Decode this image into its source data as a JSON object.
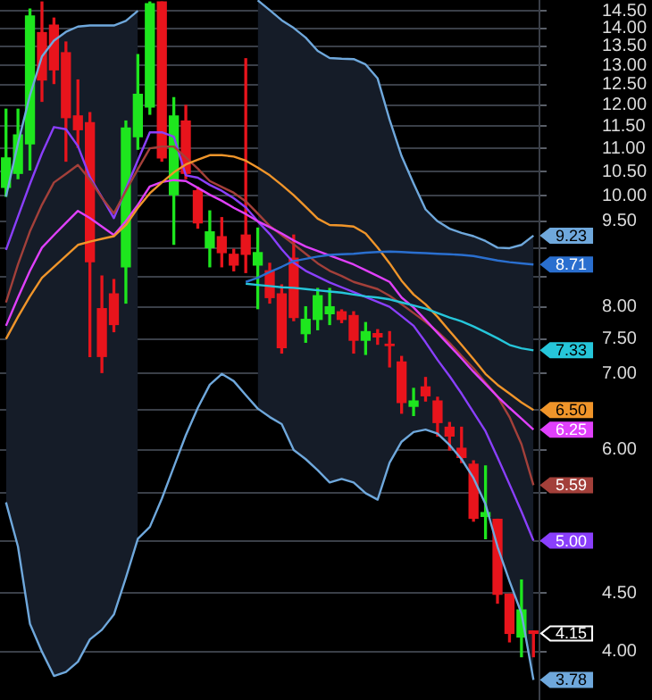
{
  "chart_data": {
    "type": "candlestick",
    "categories": [
      null,
      null,
      null,
      null,
      null,
      null,
      null,
      null,
      null,
      null,
      null,
      null,
      null,
      null,
      null,
      null,
      null,
      null,
      null,
      null,
      null,
      null,
      null,
      null,
      null,
      null,
      null,
      null,
      null,
      null,
      null,
      null,
      null,
      null,
      null,
      null,
      null,
      null,
      null,
      null,
      null,
      null,
      null,
      null,
      null
    ],
    "ohlc": [
      [
        10.17,
        11.9,
        9.99,
        10.79
      ],
      [
        10.46,
        11.9,
        10.35,
        11.3
      ],
      [
        11.1,
        14.55,
        10.53,
        14.35
      ],
      [
        13.88,
        14.76,
        12.09,
        12.62
      ],
      [
        14.09,
        14.29,
        12.53,
        12.88
      ],
      [
        13.33,
        13.62,
        10.72,
        11.7
      ],
      [
        11.74,
        12.62,
        11.02,
        11.42
      ],
      [
        11.58,
        11.82,
        7.24,
        8.76
      ],
      [
        7.97,
        8.51,
        7.01,
        7.24
      ],
      [
        8.21,
        8.45,
        7.61,
        7.72
      ],
      [
        8.67,
        11.62,
        8.06,
        11.46
      ],
      [
        11.26,
        13.28,
        10.98,
        12.26
      ],
      [
        11.95,
        14.76,
        11.78,
        14.71
      ],
      [
        14.76,
        14.76,
        10.72,
        10.79
      ],
      [
        10.02,
        12.18,
        9.07,
        11.74
      ],
      [
        11.62,
        11.99,
        10.35,
        10.46
      ],
      [
        10.1,
        10.17,
        9.37,
        9.47
      ],
      [
        9.01,
        9.7,
        8.67,
        9.3
      ],
      [
        9.21,
        9.57,
        8.67,
        8.92
      ],
      [
        8.89,
        8.98,
        8.6,
        8.7
      ],
      [
        9.24,
        13.17,
        8.57,
        8.89
      ],
      [
        8.7,
        9.37,
        7.97,
        8.92
      ],
      [
        8.6,
        8.73,
        8.06,
        8.15
      ],
      [
        8.21,
        8.36,
        7.29,
        7.37
      ],
      [
        8.82,
        9.24,
        7.78,
        7.83
      ],
      [
        7.58,
        8.0,
        7.45,
        7.8
      ],
      [
        7.8,
        8.3,
        7.64,
        8.18
      ],
      [
        7.89,
        8.3,
        7.72,
        8.0
      ],
      [
        7.92,
        7.95,
        7.75,
        7.8
      ],
      [
        7.86,
        7.92,
        7.29,
        7.48
      ],
      [
        7.48,
        7.75,
        7.27,
        7.61
      ],
      [
        7.58,
        7.64,
        7.42,
        7.53
      ],
      [
        7.42,
        7.61,
        7.09,
        7.4
      ],
      [
        7.16,
        7.24,
        6.46,
        6.6
      ],
      [
        6.55,
        6.79,
        6.43,
        6.62
      ],
      [
        6.81,
        6.94,
        6.62,
        6.69
      ],
      [
        6.62,
        6.67,
        6.17,
        6.34
      ],
      [
        6.28,
        6.34,
        6.0,
        6.17
      ],
      [
        6.02,
        6.28,
        5.85,
        5.91
      ],
      [
        5.83,
        5.87,
        5.2,
        5.23
      ],
      [
        5.25,
        5.81,
        5.02,
        5.29
      ],
      [
        5.22,
        5.22,
        4.41,
        4.49
      ],
      [
        4.49,
        4.49,
        4.08,
        4.15
      ],
      [
        4.12,
        4.62,
        3.96,
        4.35
      ],
      [
        4.17,
        4.17,
        3.96,
        4.15
      ]
    ],
    "value_labels": [
      null,
      null,
      null,
      null,
      null,
      null,
      null,
      null,
      null,
      null,
      null,
      null,
      null,
      null,
      null,
      null,
      null,
      null,
      null,
      null,
      null,
      null,
      null,
      null,
      null,
      null,
      null,
      null,
      null,
      null,
      null,
      null,
      null,
      null,
      null,
      null,
      null,
      null,
      null,
      null,
      null,
      null,
      null,
      null,
      "4.15"
    ],
    "colors": [
      "#1ee61e",
      "#1ee61e",
      "#1ee61e",
      "#e8141c",
      "#e8141c",
      "#e8141c",
      "#e8141c",
      "#e8141c",
      "#e8141c",
      "#e8141c",
      "#1ee61e",
      "#1ee61e",
      "#1ee61e",
      "#e8141c",
      "#1ee61e",
      "#e8141c",
      "#e8141c",
      "#1ee61e",
      "#e8141c",
      "#e8141c",
      "#e8141c",
      "#1ee61e",
      "#e8141c",
      "#e8141c",
      "#e8141c",
      "#1ee61e",
      "#1ee61e",
      "#1ee61e",
      "#e8141c",
      "#e8141c",
      "#1ee61e",
      "#e8141c",
      "#e8141c",
      "#e8141c",
      "#1ee61e",
      "#e8141c",
      "#e8141c",
      "#e8141c",
      "#e8141c",
      "#e8141c",
      "#1ee61e",
      "#e8141c",
      "#e8141c",
      "#1ee61e",
      "#e8141c"
    ],
    "series": [
      {
        "type": "line",
        "color": "#6fa8dc",
        "values": [
          9.98,
          11.11,
          12.24,
          13.23,
          13.66,
          13.9,
          14.05,
          14.08,
          14.08,
          14.08,
          14.21,
          14.5,
          null,
          null,
          null,
          null,
          null,
          null,
          null,
          null,
          null,
          14.81,
          14.52,
          14.23,
          14.01,
          13.74,
          13.38,
          13.19,
          13.17,
          13.16,
          13.02,
          12.66,
          11.65,
          10.83,
          10.25,
          9.73,
          9.5,
          9.36,
          9.28,
          9.22,
          9.13,
          9.01,
          9.0,
          9.06,
          9.23
        ],
        "value_labels": [
          null,
          null,
          null,
          null,
          null,
          null,
          null,
          null,
          null,
          null,
          null,
          null,
          null,
          null,
          null,
          null,
          null,
          null,
          null,
          null,
          null,
          null,
          null,
          null,
          null,
          null,
          null,
          null,
          null,
          null,
          null,
          null,
          null,
          null,
          null,
          null,
          null,
          null,
          null,
          null,
          null,
          null,
          null,
          null,
          "9.23"
        ]
      },
      {
        "type": "line",
        "color": "#6fa8dc",
        "values": [
          5.4,
          4.94,
          4.23,
          4.0,
          3.81,
          3.84,
          3.92,
          4.1,
          4.18,
          4.31,
          4.64,
          5.02,
          5.14,
          5.44,
          5.8,
          6.18,
          6.53,
          6.84,
          6.99,
          6.89,
          6.7,
          6.52,
          6.41,
          6.32,
          6.0,
          5.89,
          5.76,
          5.62,
          5.66,
          5.62,
          5.5,
          5.43,
          5.85,
          6.1,
          6.22,
          6.25,
          6.2,
          6.06,
          5.89,
          5.67,
          5.38,
          4.94,
          4.61,
          4.32,
          3.78
        ],
        "value_labels": [
          null,
          null,
          null,
          null,
          null,
          null,
          null,
          null,
          null,
          null,
          null,
          null,
          null,
          null,
          null,
          null,
          null,
          null,
          null,
          null,
          null,
          null,
          null,
          null,
          null,
          null,
          null,
          null,
          null,
          null,
          null,
          null,
          null,
          null,
          null,
          null,
          null,
          null,
          null,
          null,
          null,
          null,
          null,
          null,
          "3.78"
        ]
      },
      {
        "type": "line",
        "color": "#2a6fcf",
        "values": [
          null,
          null,
          null,
          null,
          null,
          null,
          null,
          null,
          null,
          null,
          null,
          null,
          null,
          null,
          null,
          null,
          null,
          null,
          null,
          null,
          8.41,
          8.48,
          8.58,
          8.67,
          8.77,
          8.81,
          8.85,
          8.88,
          8.89,
          8.9,
          8.92,
          8.93,
          8.94,
          8.93,
          8.92,
          8.91,
          8.9,
          8.89,
          8.88,
          8.86,
          8.82,
          8.78,
          8.75,
          8.73,
          8.71
        ],
        "value_labels": [
          null,
          null,
          null,
          null,
          null,
          null,
          null,
          null,
          null,
          null,
          null,
          null,
          null,
          null,
          null,
          null,
          null,
          null,
          null,
          null,
          null,
          null,
          null,
          null,
          null,
          null,
          null,
          null,
          null,
          null,
          null,
          null,
          null,
          null,
          null,
          null,
          null,
          null,
          null,
          null,
          null,
          null,
          null,
          null,
          "8.71"
        ]
      },
      {
        "type": "line",
        "color": "#26c6da",
        "values": [
          null,
          null,
          null,
          null,
          null,
          null,
          null,
          null,
          null,
          null,
          null,
          null,
          null,
          null,
          null,
          null,
          null,
          null,
          null,
          null,
          8.38,
          8.36,
          8.34,
          8.32,
          8.31,
          8.29,
          8.27,
          8.25,
          8.23,
          8.2,
          8.17,
          8.15,
          8.12,
          8.07,
          8.02,
          7.97,
          7.9,
          7.83,
          7.77,
          7.69,
          7.6,
          7.51,
          7.41,
          7.36,
          7.33
        ],
        "value_labels": [
          null,
          null,
          null,
          null,
          null,
          null,
          null,
          null,
          null,
          null,
          null,
          null,
          null,
          null,
          null,
          null,
          null,
          null,
          null,
          null,
          null,
          null,
          null,
          null,
          null,
          null,
          null,
          null,
          null,
          null,
          null,
          null,
          null,
          null,
          null,
          null,
          null,
          null,
          null,
          null,
          null,
          null,
          null,
          null,
          "7.33"
        ]
      },
      {
        "type": "line",
        "color": "#f0952a",
        "values": [
          7.5,
          7.84,
          8.17,
          8.48,
          8.67,
          8.86,
          9.06,
          9.12,
          9.17,
          9.22,
          9.43,
          9.76,
          10.05,
          10.27,
          10.48,
          10.65,
          10.75,
          10.85,
          10.85,
          10.82,
          10.73,
          10.58,
          10.42,
          10.22,
          10.01,
          9.78,
          9.55,
          9.43,
          9.42,
          9.4,
          9.27,
          9.01,
          8.73,
          8.43,
          8.2,
          8.04,
          7.84,
          7.62,
          7.41,
          7.2,
          6.99,
          6.84,
          6.72,
          6.6,
          6.5
        ],
        "value_labels": [
          null,
          null,
          null,
          null,
          null,
          null,
          null,
          null,
          null,
          null,
          null,
          null,
          null,
          null,
          null,
          null,
          null,
          null,
          null,
          null,
          null,
          null,
          null,
          null,
          null,
          null,
          null,
          null,
          null,
          null,
          null,
          null,
          null,
          null,
          null,
          null,
          null,
          null,
          null,
          null,
          null,
          null,
          null,
          null,
          "6.50"
        ],
        "upper": [
          9.98,
          11.11,
          12.24,
          13.23,
          13.66,
          13.9,
          14.05,
          14.08,
          14.08,
          14.08,
          14.21,
          14.5,
          null,
          null,
          null,
          null,
          null,
          null,
          null,
          null,
          null,
          14.81,
          14.52,
          14.23,
          14.01,
          13.74,
          13.38,
          13.19,
          13.17,
          13.16,
          13.02,
          12.66,
          11.65,
          10.83,
          10.25,
          9.73,
          9.5,
          9.36,
          9.28,
          9.22,
          9.13,
          9.01,
          9.0,
          9.06,
          9.23
        ],
        "lower": [
          5.4,
          4.94,
          4.23,
          4.0,
          3.81,
          3.84,
          3.92,
          4.1,
          4.18,
          4.31,
          4.64,
          5.02,
          null,
          null,
          null,
          null,
          null,
          null,
          null,
          null,
          null,
          6.52,
          6.41,
          6.32,
          6.0,
          5.89,
          5.76,
          5.62,
          5.66,
          5.62,
          5.5,
          5.43,
          5.85,
          6.1,
          6.22,
          6.25,
          6.2,
          6.06,
          5.89,
          5.67,
          5.38,
          4.94,
          4.61,
          4.32,
          3.78
        ]
      },
      {
        "type": "line",
        "color": "#e040fb",
        "values": [
          7.7,
          8.15,
          8.6,
          9.01,
          9.24,
          9.47,
          9.7,
          9.56,
          9.4,
          9.24,
          9.5,
          9.82,
          10.19,
          10.28,
          10.32,
          10.3,
          10.16,
          10.02,
          9.9,
          9.76,
          9.64,
          9.5,
          9.39,
          9.27,
          9.14,
          9.03,
          8.95,
          8.87,
          8.79,
          8.71,
          8.61,
          8.51,
          8.41,
          8.15,
          7.99,
          7.79,
          7.59,
          7.4,
          7.21,
          7.02,
          6.85,
          6.68,
          6.53,
          6.39,
          6.25
        ],
        "value_labels": [
          null,
          null,
          null,
          null,
          null,
          null,
          null,
          null,
          null,
          null,
          null,
          null,
          null,
          null,
          null,
          null,
          null,
          null,
          null,
          null,
          null,
          null,
          null,
          null,
          null,
          null,
          null,
          null,
          null,
          null,
          null,
          null,
          null,
          null,
          null,
          null,
          null,
          null,
          null,
          null,
          null,
          null,
          null,
          null,
          "6.25"
        ]
      },
      {
        "type": "line",
        "color": "#a3403a",
        "values": [
          8.07,
          8.71,
          9.31,
          9.82,
          10.27,
          10.45,
          10.64,
          10.33,
          9.96,
          9.65,
          10.1,
          10.55,
          11.0,
          11.04,
          11.04,
          10.8,
          10.56,
          10.3,
          10.18,
          10.06,
          9.89,
          9.65,
          9.41,
          9.24,
          9.07,
          8.9,
          8.73,
          8.6,
          8.51,
          8.41,
          8.35,
          8.29,
          8.18,
          8.04,
          7.9,
          7.76,
          7.61,
          7.44,
          7.25,
          7.07,
          6.87,
          6.68,
          6.41,
          6.07,
          5.59
        ],
        "value_labels": [
          null,
          null,
          null,
          null,
          null,
          null,
          null,
          null,
          null,
          null,
          null,
          null,
          null,
          null,
          null,
          null,
          null,
          null,
          null,
          null,
          null,
          null,
          null,
          null,
          null,
          null,
          null,
          null,
          null,
          null,
          null,
          null,
          null,
          null,
          null,
          null,
          null,
          null,
          null,
          null,
          null,
          null,
          null,
          null,
          "5.59"
        ]
      },
      {
        "type": "line",
        "color": "#8a3ffc",
        "values": [
          8.97,
          9.59,
          10.24,
          10.89,
          11.48,
          11.43,
          11.05,
          10.38,
          9.97,
          9.56,
          10.14,
          10.74,
          11.36,
          11.36,
          11.26,
          10.42,
          10.37,
          10.22,
          10.1,
          9.95,
          9.77,
          9.5,
          9.26,
          8.98,
          8.74,
          8.6,
          8.5,
          8.4,
          8.32,
          8.24,
          8.16,
          8.08,
          8.0,
          7.85,
          7.7,
          7.45,
          7.19,
          6.96,
          6.72,
          6.47,
          6.23,
          5.91,
          5.6,
          5.3,
          5.0
        ],
        "value_labels": [
          null,
          null,
          null,
          null,
          null,
          null,
          null,
          null,
          null,
          null,
          null,
          null,
          null,
          null,
          null,
          null,
          null,
          null,
          null,
          null,
          null,
          null,
          null,
          null,
          null,
          null,
          null,
          null,
          null,
          null,
          null,
          null,
          null,
          null,
          null,
          null,
          null,
          null,
          null,
          null,
          null,
          null,
          null,
          null,
          "5.00"
        ]
      }
    ],
    "ylim": [
      3.63,
      14.82
    ],
    "log": true,
    "yticks": [
      {
        "value": 4,
        "label": "4.00"
      },
      {
        "value": 4.5,
        "label": "4.50"
      },
      {
        "value": 5,
        "label": null
      },
      {
        "value": 5.5,
        "label": null
      },
      {
        "value": 6,
        "label": "6.00"
      },
      {
        "value": 6.5,
        "label": null
      },
      {
        "value": 7,
        "label": "7.00"
      },
      {
        "value": 7.5,
        "label": "7.50"
      },
      {
        "value": 8,
        "label": "8.00"
      },
      {
        "value": 8.5,
        "label": null
      },
      {
        "value": 9,
        "label": null
      },
      {
        "value": 9.5,
        "label": "9.50"
      },
      {
        "value": 10,
        "label": "10.00"
      },
      {
        "value": 10.5,
        "label": "10.50"
      },
      {
        "value": 11,
        "label": "11.00"
      },
      {
        "value": 11.5,
        "label": "11.50"
      },
      {
        "value": 12,
        "label": "12.00"
      },
      {
        "value": 12.5,
        "label": "12.50"
      },
      {
        "value": 13,
        "label": "13.00"
      },
      {
        "value": 13.5,
        "label": "13.50"
      },
      {
        "value": 14,
        "label": "14.00"
      },
      {
        "value": 14.5,
        "label": "14.50"
      }
    ],
    "grid": "y",
    "tick_labels": "y"
  }
}
